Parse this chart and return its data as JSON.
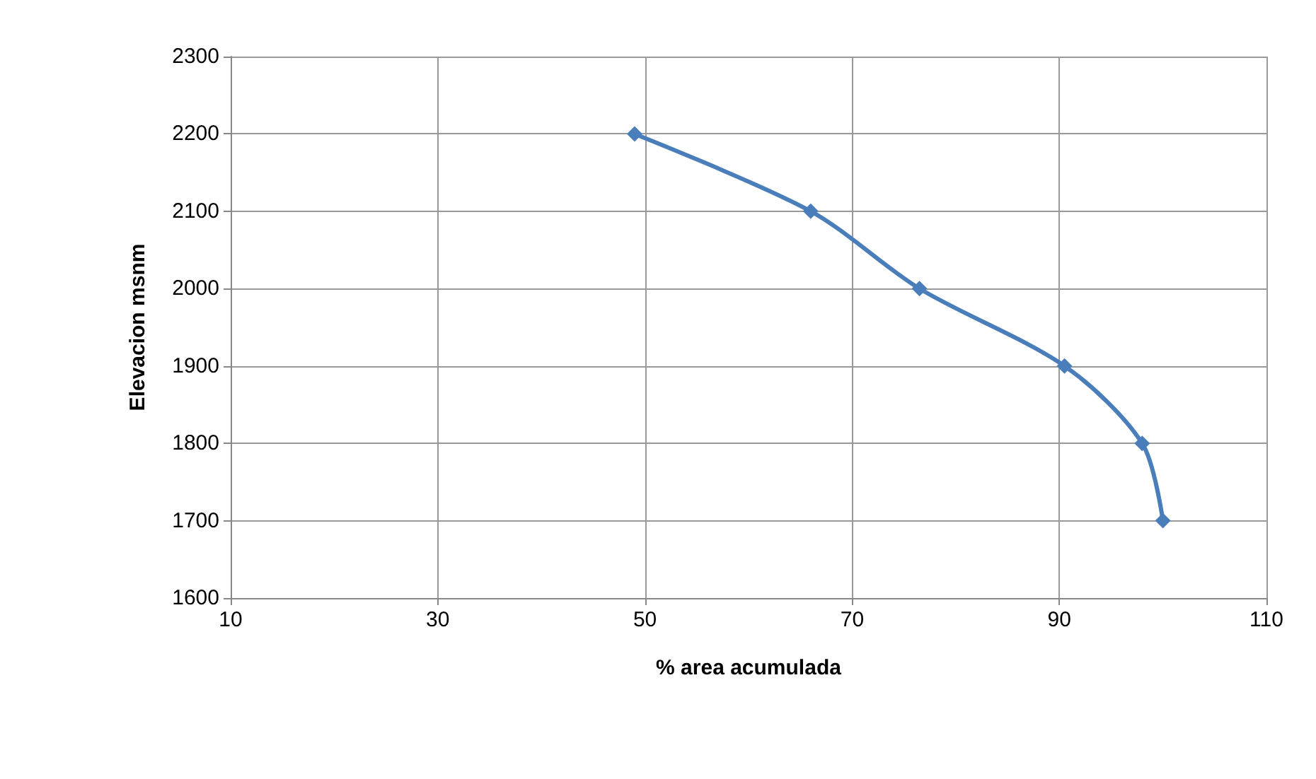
{
  "chart_data": {
    "type": "line",
    "xlabel": "% area acumulada",
    "ylabel": "Elevacion msnm",
    "x": [
      49,
      66,
      76.5,
      90.5,
      98,
      100
    ],
    "series": [
      {
        "color": "#4a7ebb",
        "values": [
          2200,
          2100,
          2000,
          1900,
          1800,
          1700
        ]
      }
    ],
    "xlim": [
      10,
      110
    ],
    "xticks": [
      10,
      30,
      50,
      70,
      90,
      110
    ],
    "ylim": [
      1600,
      2300
    ],
    "yticks": [
      1600,
      1700,
      1800,
      1900,
      2000,
      2100,
      2200,
      2300
    ],
    "grid": true,
    "marker": "diamond",
    "line_style": "solid"
  }
}
